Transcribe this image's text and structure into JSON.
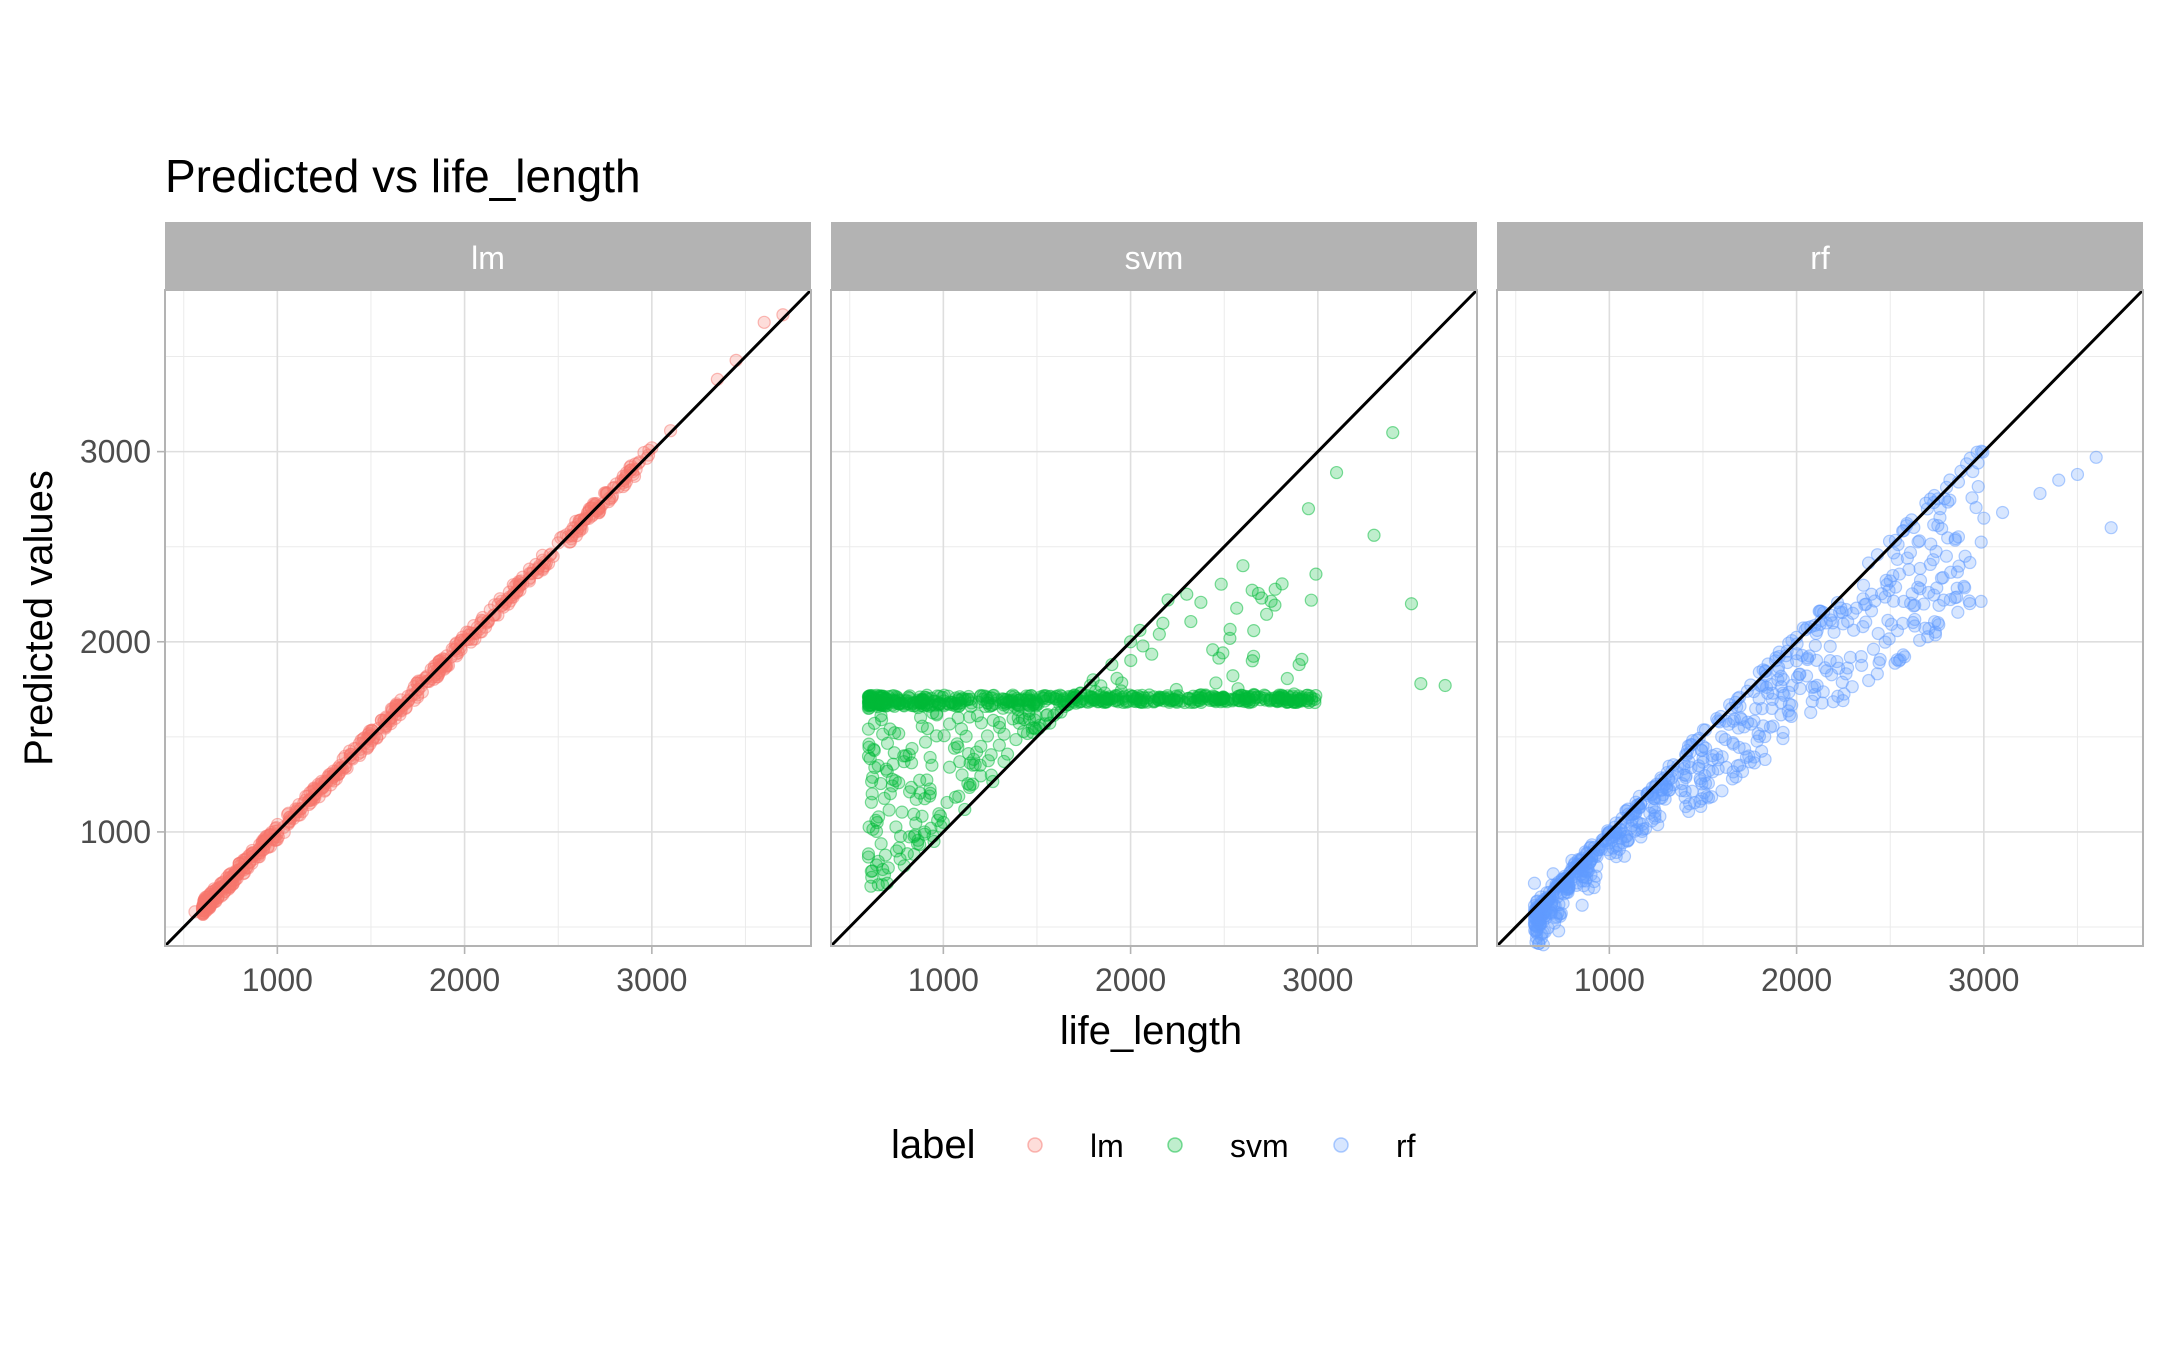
{
  "chart_data": {
    "type": "scatter",
    "title": "Predicted vs life_length",
    "xlabel": "life_length",
    "ylabel": "Predicted values",
    "xlim": [
      400,
      3850
    ],
    "ylim": [
      400,
      3850
    ],
    "x_ticks": [
      1000,
      2000,
      3000
    ],
    "y_ticks": [
      1000,
      2000,
      3000
    ],
    "grid": true,
    "reference_line": "y = x",
    "legend": {
      "title": "label",
      "position": "bottom"
    },
    "panels": [
      {
        "name": "lm",
        "color": "#F8766D",
        "anchors": [
          [
            560,
            580
          ],
          [
            650,
            650
          ],
          [
            740,
            740
          ],
          [
            800,
            790
          ],
          [
            900,
            890
          ],
          [
            1000,
            990
          ],
          [
            1100,
            1110
          ],
          [
            1200,
            1200
          ],
          [
            1300,
            1320
          ],
          [
            1400,
            1390
          ],
          [
            1500,
            1510
          ],
          [
            1600,
            1600
          ],
          [
            1700,
            1690
          ],
          [
            1800,
            1820
          ],
          [
            1900,
            1900
          ],
          [
            2000,
            2010
          ],
          [
            2100,
            2110
          ],
          [
            2200,
            2190
          ],
          [
            2300,
            2320
          ],
          [
            2400,
            2400
          ],
          [
            2500,
            2520
          ],
          [
            2600,
            2580
          ],
          [
            2700,
            2720
          ],
          [
            2800,
            2810
          ],
          [
            2900,
            2880
          ],
          [
            3000,
            3020
          ],
          [
            3100,
            3110
          ],
          [
            3350,
            3380
          ],
          [
            3450,
            3480
          ],
          [
            3600,
            3680
          ],
          [
            3700,
            3720
          ]
        ]
      },
      {
        "name": "svm",
        "color": "#00BA38",
        "anchors": [
          [
            600,
            1650
          ],
          [
            620,
            1200
          ],
          [
            700,
            730
          ],
          [
            750,
            900
          ],
          [
            800,
            1400
          ],
          [
            900,
            1000
          ],
          [
            950,
            950
          ],
          [
            1000,
            1050
          ],
          [
            1100,
            1300
          ],
          [
            1200,
            1450
          ],
          [
            1300,
            1550
          ],
          [
            1400,
            1600
          ],
          [
            1500,
            1680
          ],
          [
            1600,
            1700
          ],
          [
            1700,
            1720
          ],
          [
            1800,
            1800
          ],
          [
            1900,
            1880
          ],
          [
            2000,
            2000
          ],
          [
            2050,
            2060
          ],
          [
            2100,
            1720
          ],
          [
            2200,
            2220
          ],
          [
            2300,
            2250
          ],
          [
            2400,
            1720
          ],
          [
            2600,
            2400
          ],
          [
            2650,
            1900
          ],
          [
            2700,
            2230
          ],
          [
            2900,
            1880
          ],
          [
            2950,
            2700
          ],
          [
            3100,
            2890
          ],
          [
            3300,
            2560
          ],
          [
            3400,
            3100
          ],
          [
            3500,
            2200
          ],
          [
            3550,
            1780
          ],
          [
            3680,
            1770
          ]
        ]
      },
      {
        "name": "rf",
        "color": "#619CFF",
        "anchors": [
          [
            600,
            730
          ],
          [
            700,
            780
          ],
          [
            800,
            850
          ],
          [
            900,
            920
          ],
          [
            1000,
            1000
          ],
          [
            1100,
            1120
          ],
          [
            1200,
            1200
          ],
          [
            1300,
            1250
          ],
          [
            1400,
            1300
          ],
          [
            1500,
            1450
          ],
          [
            1600,
            1500
          ],
          [
            1700,
            1600
          ],
          [
            1800,
            1700
          ],
          [
            1900,
            1800
          ],
          [
            2000,
            1900
          ],
          [
            2100,
            1980
          ],
          [
            2200,
            2050
          ],
          [
            2300,
            2150
          ],
          [
            2400,
            2250
          ],
          [
            2500,
            2320
          ],
          [
            2600,
            2380
          ],
          [
            2800,
            2450
          ],
          [
            2900,
            2450
          ],
          [
            3000,
            2650
          ],
          [
            3100,
            2680
          ],
          [
            3300,
            2780
          ],
          [
            3400,
            2850
          ],
          [
            3500,
            2880
          ],
          [
            3600,
            2970
          ],
          [
            3680,
            2600
          ]
        ]
      }
    ]
  }
}
